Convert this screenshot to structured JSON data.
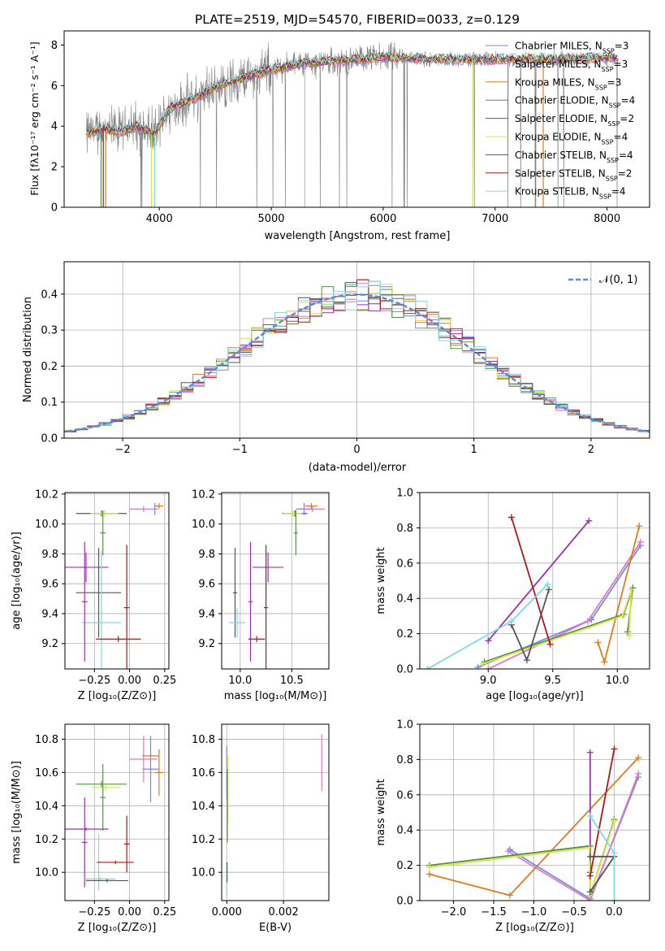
{
  "figure_title": "PLATE=2519, MJD=54570, FIBERID=0033, z=0.129",
  "models": [
    {
      "name": "Chabrier MILES",
      "nssp": "3",
      "color": "#6b8fdc"
    },
    {
      "name": "Salpeter MILES",
      "nssp": "3",
      "color": "#e377c2"
    },
    {
      "name": "Kroupa MILES",
      "nssp": "3",
      "color": "#e07b20"
    },
    {
      "name": "Chabrier ELODIE",
      "nssp": "4",
      "color": "#5a8f4a"
    },
    {
      "name": "Salpeter ELODIE",
      "nssp": "2",
      "color": "#9b30b0"
    },
    {
      "name": "Kroupa ELODIE",
      "nssp": "4",
      "color": "#d4e84a"
    },
    {
      "name": "Chabrier STELIB",
      "nssp": "4",
      "color": "#555555"
    },
    {
      "name": "Salpeter STELIB",
      "nssp": "2",
      "color": "#b01818"
    },
    {
      "name": "Kroupa STELIB",
      "nssp": "4",
      "color": "#80d8e0"
    }
  ],
  "chart_data": [
    {
      "id": "spectrum",
      "type": "line",
      "xlabel": "wavelength [Angstrom, rest frame]",
      "ylabel": "Flux [fλ10⁻¹⁷ erg cm⁻² s⁻¹ A⁻¹]",
      "xlim": [
        3150,
        8380
      ],
      "ylim": [
        0,
        8.7
      ],
      "xticks": [
        4000,
        5000,
        6000,
        7000,
        8000
      ],
      "yticks": [
        0,
        2,
        4,
        6,
        8
      ],
      "data_color": "#808080",
      "continuum_x": [
        3350,
        3500,
        3650,
        3800,
        3950,
        4100,
        4300,
        4500,
        4700,
        5000,
        5300,
        5600,
        6000,
        6500,
        7000,
        7500,
        8100
      ],
      "continuum_y": [
        3.6,
        3.9,
        3.7,
        4.0,
        3.6,
        4.9,
        5.3,
        5.9,
        6.3,
        6.8,
        7.1,
        7.2,
        7.4,
        7.3,
        7.3,
        7.3,
        7.4
      ],
      "legend_position": "upper right",
      "grid": false
    },
    {
      "id": "residuals",
      "type": "histogram",
      "xlabel": "(data-model)/error",
      "ylabel": "Normed distribution",
      "xlim": [
        -2.5,
        2.5
      ],
      "ylim": [
        0,
        0.49
      ],
      "xticks": [
        -2,
        -1,
        0,
        1,
        2
      ],
      "yticks": [
        0,
        0.1,
        0.2,
        0.3,
        0.4
      ],
      "legend": "𝒩(0, 1)",
      "legend_position": "upper right",
      "grid": true,
      "gaussian": {
        "mean": 0,
        "sigma": 1
      }
    },
    {
      "id": "age-vs-Z",
      "type": "errorbar",
      "xlabel": "Z [log₁₀(Z/Z⊙)]",
      "ylabel": "age  [log₁₀(age/yr)]",
      "xlim": [
        -0.46,
        0.28
      ],
      "ylim": [
        9.03,
        10.21
      ],
      "xticks": [
        -0.25,
        0.0,
        0.25
      ],
      "yticks": [
        9.2,
        9.4,
        9.6,
        9.8,
        10.0,
        10.2
      ],
      "grid": true,
      "points": [
        {
          "series": 6,
          "x": -0.2,
          "xerr": 0.18,
          "y": 10.07,
          "yerr": 0.02
        },
        {
          "series": 5,
          "x": -0.18,
          "xerr": 0.1,
          "y": 10.07,
          "yerr": 0.02
        },
        {
          "series": 3,
          "x": -0.19,
          "xerr": 0.02,
          "y": 9.94,
          "yerr": 0.15
        },
        {
          "series": 2,
          "x": 0.21,
          "xerr": 0.03,
          "y": 10.12,
          "yerr": 0.02
        },
        {
          "series": 0,
          "x": 0.18,
          "xerr": 0.02,
          "y": 10.1,
          "yerr": 0.04
        },
        {
          "series": 1,
          "x": 0.1,
          "xerr": 0.1,
          "y": 10.1,
          "yerr": 0.02
        },
        {
          "series": 4,
          "x": -0.31,
          "xerr": 0.16,
          "y": 9.71,
          "yerr": 0.1
        },
        {
          "series": 6,
          "x": -0.22,
          "xerr": 0.16,
          "y": 9.54,
          "yerr": 0.3
        },
        {
          "series": 8,
          "x": -0.2,
          "xerr": 0.14,
          "y": 9.34,
          "yerr": 0.48
        },
        {
          "series": 4,
          "x": -0.32,
          "xerr": 0.02,
          "y": 9.48,
          "yerr": 0.4
        },
        {
          "series": 7,
          "x": -0.02,
          "xerr": 0.02,
          "y": 9.44,
          "yerr": 0.42
        },
        {
          "series": 7,
          "x": -0.08,
          "xerr": 0.16,
          "y": 9.23,
          "yerr": 0.02
        }
      ]
    },
    {
      "id": "age-vs-mass",
      "type": "errorbar",
      "xlabel": "mass [log₁₀(M/M⊙)]",
      "ylabel": "",
      "xlim": [
        9.82,
        10.86
      ],
      "ylim": [
        9.03,
        10.21
      ],
      "xticks": [
        10.0,
        10.5
      ],
      "yticks": [
        9.2,
        9.4,
        9.6,
        9.8,
        10.0,
        10.2
      ],
      "grid": true,
      "points": [
        {
          "series": 6,
          "x": 10.53,
          "xerr": 0.12,
          "y": 10.07,
          "yerr": 0.02
        },
        {
          "series": 5,
          "x": 10.51,
          "xerr": 0.09,
          "y": 10.07,
          "yerr": 0.02
        },
        {
          "series": 3,
          "x": 10.54,
          "xerr": 0.02,
          "y": 9.94,
          "yerr": 0.15
        },
        {
          "series": 2,
          "x": 10.69,
          "xerr": 0.06,
          "y": 10.12,
          "yerr": 0.02
        },
        {
          "series": 0,
          "x": 10.62,
          "xerr": 0.08,
          "y": 10.1,
          "yerr": 0.04
        },
        {
          "series": 1,
          "x": 10.7,
          "xerr": 0.12,
          "y": 10.1,
          "yerr": 0.02
        },
        {
          "series": 4,
          "x": 10.27,
          "xerr": 0.15,
          "y": 9.71,
          "yerr": 0.1
        },
        {
          "series": 6,
          "x": 9.95,
          "xerr": 0.02,
          "y": 9.54,
          "yerr": 0.3
        },
        {
          "series": 8,
          "x": 9.97,
          "xerr": 0.08,
          "y": 9.34,
          "yerr": 0.1
        },
        {
          "series": 4,
          "x": 10.1,
          "xerr": 0.02,
          "y": 9.48,
          "yerr": 0.4
        },
        {
          "series": 7,
          "x": 10.25,
          "xerr": 0.02,
          "y": 9.44,
          "yerr": 0.42
        },
        {
          "series": 7,
          "x": 10.16,
          "xerr": 0.08,
          "y": 9.23,
          "yerr": 0.02
        }
      ]
    },
    {
      "id": "weight-vs-age",
      "type": "line",
      "xlabel": "age  [log₁₀(age/yr)]",
      "ylabel": "mass weight",
      "xlim": [
        8.47,
        10.25
      ],
      "ylim": [
        0,
        1.0
      ],
      "xticks": [
        9.0,
        9.5,
        10.0
      ],
      "yticks": [
        0.0,
        0.2,
        0.4,
        0.6,
        0.8,
        1.0
      ],
      "grid": true,
      "series": [
        {
          "series": 0,
          "x": [
            8.92,
            9.8,
            10.18
          ],
          "y": [
            0.01,
            0.28,
            0.7
          ]
        },
        {
          "series": 1,
          "x": [
            9.0,
            9.77,
            10.18
          ],
          "y": [
            0.0,
            0.27,
            0.72
          ]
        },
        {
          "series": 2,
          "x": [
            9.85,
            9.9,
            10.17
          ],
          "y": [
            0.15,
            0.04,
            0.81
          ]
        },
        {
          "series": 3,
          "x": [
            8.97,
            10.05,
            10.12,
            10.08
          ],
          "y": [
            0.04,
            0.31,
            0.46,
            0.21
          ]
        },
        {
          "series": 4,
          "x": [
            9.0,
            9.78
          ],
          "y": [
            0.16,
            0.84
          ]
        },
        {
          "series": 5,
          "x": [
            8.96,
            10.04,
            10.11,
            10.09
          ],
          "y": [
            0.03,
            0.3,
            0.45,
            0.19
          ]
        },
        {
          "series": 6,
          "x": [
            9.18,
            9.3,
            9.47
          ],
          "y": [
            0.25,
            0.05,
            0.45
          ]
        },
        {
          "series": 7,
          "x": [
            9.18,
            9.48
          ],
          "y": [
            0.86,
            0.14
          ]
        },
        {
          "series": 8,
          "x": [
            8.53,
            9.18,
            9.46
          ],
          "y": [
            0.0,
            0.27,
            0.48
          ]
        }
      ]
    },
    {
      "id": "mass-vs-Z",
      "type": "errorbar",
      "xlabel": "Z [log₁₀(Z/Z⊙)]",
      "ylabel": "mass [log₁₀(M/M⊙)]",
      "xlim": [
        -0.46,
        0.28
      ],
      "ylim": [
        9.83,
        10.89
      ],
      "xticks": [
        -0.25,
        0.0,
        0.25
      ],
      "yticks": [
        10.0,
        10.2,
        10.4,
        10.6,
        10.8
      ],
      "grid": true,
      "points": [
        {
          "series": 3,
          "x": -0.2,
          "xerr": 0.18,
          "y": 10.53,
          "yerr": 0.02
        },
        {
          "series": 5,
          "x": -0.17,
          "xerr": 0.1,
          "y": 10.51,
          "yerr": 0.02
        },
        {
          "series": 3,
          "x": -0.19,
          "xerr": 0.02,
          "y": 10.45,
          "yerr": 0.2
        },
        {
          "series": 2,
          "x": 0.21,
          "xerr": 0.03,
          "y": 10.6,
          "yerr": 0.14
        },
        {
          "series": 0,
          "x": 0.15,
          "xerr": 0.06,
          "y": 10.62,
          "yerr": 0.2
        },
        {
          "series": 1,
          "x": 0.1,
          "xerr": 0.1,
          "y": 10.68,
          "yerr": 0.14
        },
        {
          "series": 2,
          "x": 0.15,
          "xerr": 0.06,
          "y": 10.7,
          "yerr": 0.01
        },
        {
          "series": 4,
          "x": -0.31,
          "xerr": 0.16,
          "y": 10.26,
          "yerr": 0.01
        },
        {
          "series": 4,
          "x": -0.32,
          "xerr": 0.02,
          "y": 10.18,
          "yerr": 0.27
        },
        {
          "series": 8,
          "x": -0.22,
          "xerr": 0.02,
          "y": 10.06,
          "yerr": 0.17
        },
        {
          "series": 7,
          "x": -0.02,
          "xerr": 0.02,
          "y": 10.17,
          "yerr": 0.17
        },
        {
          "series": 7,
          "x": -0.1,
          "xerr": 0.13,
          "y": 10.06,
          "yerr": 0.01
        },
        {
          "series": 8,
          "x": -0.21,
          "xerr": 0.11,
          "y": 9.96,
          "yerr": 0.01
        },
        {
          "series": 6,
          "x": -0.16,
          "xerr": 0.15,
          "y": 9.95,
          "yerr": 0.01
        }
      ]
    },
    {
      "id": "mass-vs-EBV",
      "type": "errorbar",
      "xlabel": "E(B-V)",
      "ylabel": "",
      "xlim": [
        -0.00018,
        0.0036
      ],
      "ylim": [
        9.83,
        10.89
      ],
      "xticks": [
        0.0,
        0.002
      ],
      "yticks": [
        10.0,
        10.2,
        10.4,
        10.6,
        10.8
      ],
      "grid": true,
      "points": [
        {
          "series": 0,
          "x": 0.0,
          "xerr": 0.0,
          "y": 10.6,
          "yerr": 0.16
        },
        {
          "series": 5,
          "x": 3e-05,
          "xerr": 0.0,
          "y": 10.5,
          "yerr": 0.2
        },
        {
          "series": 3,
          "x": 2e-05,
          "xerr": 0.0,
          "y": 10.4,
          "yerr": 0.22
        },
        {
          "series": 8,
          "x": 0.0,
          "xerr": 0.0,
          "y": 9.96,
          "yerr": 0.1
        },
        {
          "series": 6,
          "x": 1e-05,
          "xerr": 0.0,
          "y": 10.0,
          "yerr": 0.06
        },
        {
          "series": 1,
          "x": 0.00335,
          "xerr": 0.0,
          "y": 10.66,
          "yerr": 0.17
        }
      ]
    },
    {
      "id": "weight-vs-Z",
      "type": "line",
      "xlabel": "Z [log₁₀(Z/Z⊙)]",
      "ylabel": "mass weight",
      "xlim": [
        -2.42,
        0.44
      ],
      "ylim": [
        0,
        1.0
      ],
      "xticks": [
        -2.0,
        -1.5,
        -1.0,
        -0.5,
        0.0
      ],
      "yticks": [
        0.0,
        0.2,
        0.4,
        0.6,
        0.8,
        1.0
      ],
      "grid": true,
      "series": [
        {
          "series": 0,
          "x": [
            -1.3,
            -0.3,
            0.3
          ],
          "y": [
            0.29,
            0.01,
            0.7
          ]
        },
        {
          "series": 1,
          "x": [
            -1.32,
            -0.3,
            0.3
          ],
          "y": [
            0.28,
            0.0,
            0.72
          ]
        },
        {
          "series": 2,
          "x": [
            -2.3,
            -1.3,
            0.3
          ],
          "y": [
            0.15,
            0.03,
            0.81
          ]
        },
        {
          "series": 3,
          "x": [
            -2.3,
            -0.3,
            -0.3,
            0.0
          ],
          "y": [
            0.2,
            0.31,
            0.03,
            0.46
          ]
        },
        {
          "series": 4,
          "x": [
            -0.3,
            -0.3
          ],
          "y": [
            0.84,
            0.16
          ]
        },
        {
          "series": 5,
          "x": [
            -2.3,
            -0.31,
            -0.3,
            0.0
          ],
          "y": [
            0.19,
            0.3,
            0.03,
            0.45
          ]
        },
        {
          "series": 6,
          "x": [
            -0.3,
            0.0,
            -0.3
          ],
          "y": [
            0.25,
            0.25,
            0.05
          ]
        },
        {
          "series": 7,
          "x": [
            0.0,
            -0.3
          ],
          "y": [
            0.86,
            0.14
          ]
        },
        {
          "series": 8,
          "x": [
            -0.3,
            0.0,
            0.0
          ],
          "y": [
            0.48,
            0.27,
            0.0
          ]
        }
      ]
    }
  ]
}
